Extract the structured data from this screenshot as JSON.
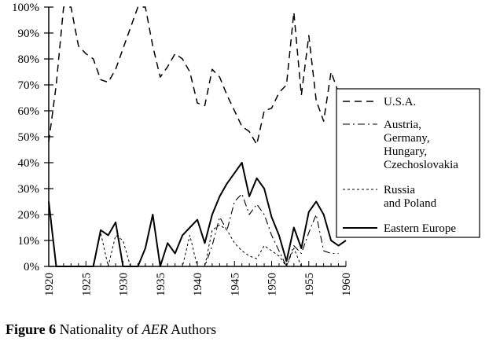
{
  "caption": {
    "figure_label": "Figure 6",
    "text_before": "Nationality of",
    "italic_text": "AER",
    "text_after": "Authors"
  },
  "chart_data": {
    "type": "line",
    "title": "",
    "xlabel": "",
    "ylabel": "",
    "xlim": [
      1920,
      1960
    ],
    "ylim": [
      0,
      100
    ],
    "x_ticks": [
      1920,
      1925,
      1930,
      1935,
      1940,
      1945,
      1950,
      1955,
      1960
    ],
    "y_ticks": [
      0,
      10,
      20,
      30,
      40,
      50,
      60,
      70,
      80,
      90,
      100
    ],
    "y_tick_labels": [
      "0%",
      "10%",
      "20%",
      "30%",
      "40%",
      "50%",
      "60%",
      "70%",
      "80%",
      "90%",
      "100%"
    ],
    "grid": false,
    "legend_position": "right",
    "series": [
      {
        "name": "U.S.A.",
        "style": "dashed",
        "x": [
          1920,
          1921,
          1922,
          1923,
          1924,
          1925,
          1926,
          1927,
          1928,
          1929,
          1930,
          1931,
          1932,
          1933,
          1934,
          1935,
          1936,
          1937,
          1938,
          1939,
          1940,
          1941,
          1942,
          1943,
          1944,
          1945,
          1946,
          1947,
          1948,
          1949,
          1950,
          1951,
          1952,
          1953,
          1954,
          1955,
          1956,
          1957,
          1958,
          1959
        ],
        "y": [
          48,
          70,
          100,
          100,
          85,
          82,
          80,
          72,
          71,
          76,
          84,
          92,
          100,
          100,
          85,
          73,
          77,
          82,
          80,
          75,
          63,
          62,
          76,
          73,
          66,
          60,
          54,
          52,
          47,
          60,
          61,
          67,
          70,
          98,
          66,
          89,
          64,
          56,
          75,
          67
        ]
      },
      {
        "name": "Austria, Germany, Hungary, Czechoslovakia",
        "style": "dash-dot",
        "x": [
          1920,
          1921,
          1922,
          1923,
          1924,
          1925,
          1926,
          1927,
          1928,
          1929,
          1930,
          1931,
          1932,
          1933,
          1934,
          1935,
          1936,
          1937,
          1938,
          1939,
          1940,
          1941,
          1942,
          1943,
          1944,
          1945,
          1946,
          1947,
          1948,
          1949,
          1950,
          1951,
          1952,
          1953,
          1954,
          1955,
          1956,
          1957,
          1958,
          1959
        ],
        "y": [
          0,
          0,
          0,
          0,
          0,
          0,
          0,
          0,
          0,
          0,
          0,
          0,
          0,
          0,
          0,
          0,
          0,
          0,
          0,
          0,
          0,
          0,
          8,
          19,
          14,
          25,
          28,
          20,
          24,
          20,
          12,
          6,
          0,
          8,
          5,
          13,
          20,
          6,
          5,
          5
        ]
      },
      {
        "name": "Russia and Poland",
        "style": "dotted",
        "x": [
          1920,
          1921,
          1922,
          1923,
          1924,
          1925,
          1926,
          1927,
          1928,
          1929,
          1930,
          1931,
          1932,
          1933,
          1934,
          1935,
          1936,
          1937,
          1938,
          1939,
          1940,
          1941,
          1942,
          1943,
          1944,
          1945,
          1946,
          1947,
          1948,
          1949,
          1950,
          1951,
          1952,
          1953,
          1954,
          1955,
          1956,
          1957,
          1958,
          1959
        ],
        "y": [
          0,
          0,
          0,
          0,
          0,
          0,
          0,
          13,
          0,
          12,
          10,
          0,
          0,
          0,
          0,
          0,
          0,
          0,
          0,
          12,
          0,
          0,
          14,
          16,
          14,
          9,
          6,
          4,
          3,
          8,
          6,
          4,
          0,
          7,
          0,
          0,
          0,
          0,
          0,
          0
        ]
      },
      {
        "name": "Eastern Europe",
        "style": "solid",
        "x": [
          1920,
          1921,
          1922,
          1923,
          1924,
          1925,
          1926,
          1927,
          1928,
          1929,
          1930,
          1931,
          1932,
          1933,
          1934,
          1935,
          1936,
          1937,
          1938,
          1939,
          1940,
          1941,
          1942,
          1943,
          1944,
          1945,
          1946,
          1947,
          1948,
          1949,
          1950,
          1951,
          1952,
          1953,
          1954,
          1955,
          1956,
          1957,
          1958,
          1959,
          1960
        ],
        "y": [
          25,
          0,
          0,
          0,
          0,
          0,
          0,
          14,
          12,
          17,
          0,
          0,
          0,
          7,
          20,
          0,
          9,
          5,
          12,
          15,
          18,
          9,
          20,
          27,
          32,
          36,
          40,
          27,
          34,
          30,
          19,
          12,
          2,
          15,
          7,
          21,
          25,
          20,
          10,
          8,
          10
        ]
      }
    ]
  }
}
